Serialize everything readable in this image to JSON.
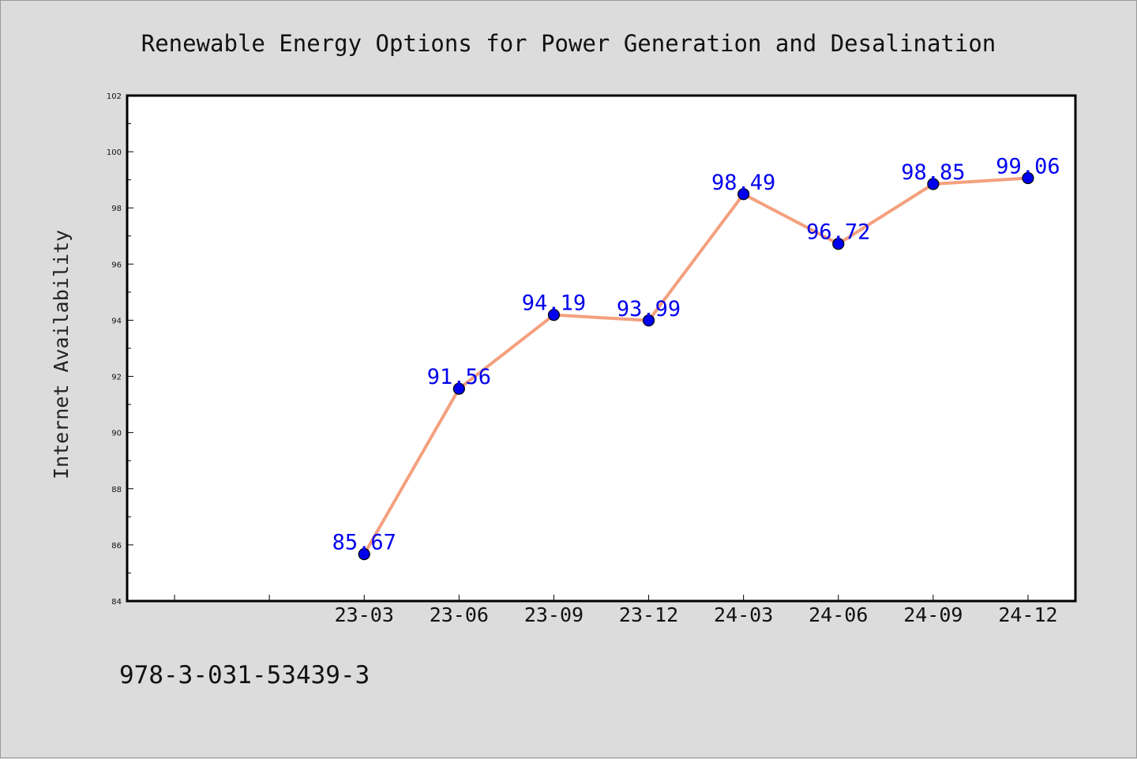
{
  "footer": {
    "code": "978-3-031-53439-3"
  },
  "colors": {
    "background": "#dcdcdc",
    "plot": "#ffffff",
    "line": "#f4a07e",
    "marker": "#0000ee",
    "label": "#0000ee"
  },
  "chart_data": {
    "type": "line",
    "title": "Renewable Energy Options for Power Generation and Desalination",
    "xlabel": "",
    "ylabel": "Internet Availability",
    "ylim": [
      84,
      102
    ],
    "yticks": [
      "84",
      "86",
      "88",
      "90",
      "92",
      "94",
      "96",
      "98",
      "100",
      "102"
    ],
    "x_slots": 10,
    "categories": [
      "23-03",
      "23-06",
      "23-09",
      "23-12",
      "24-03",
      "24-06",
      "24-09",
      "24-12"
    ],
    "series": [
      {
        "values": [
          85.67,
          91.56,
          94.19,
          93.99,
          98.49,
          96.72,
          98.85,
          99.06
        ]
      }
    ],
    "data_labels": [
      "85.67",
      "91.56",
      "94.19",
      "93.99",
      "98.49",
      "96.72",
      "98.85",
      "99.06"
    ],
    "grid": false,
    "legend": "none"
  }
}
